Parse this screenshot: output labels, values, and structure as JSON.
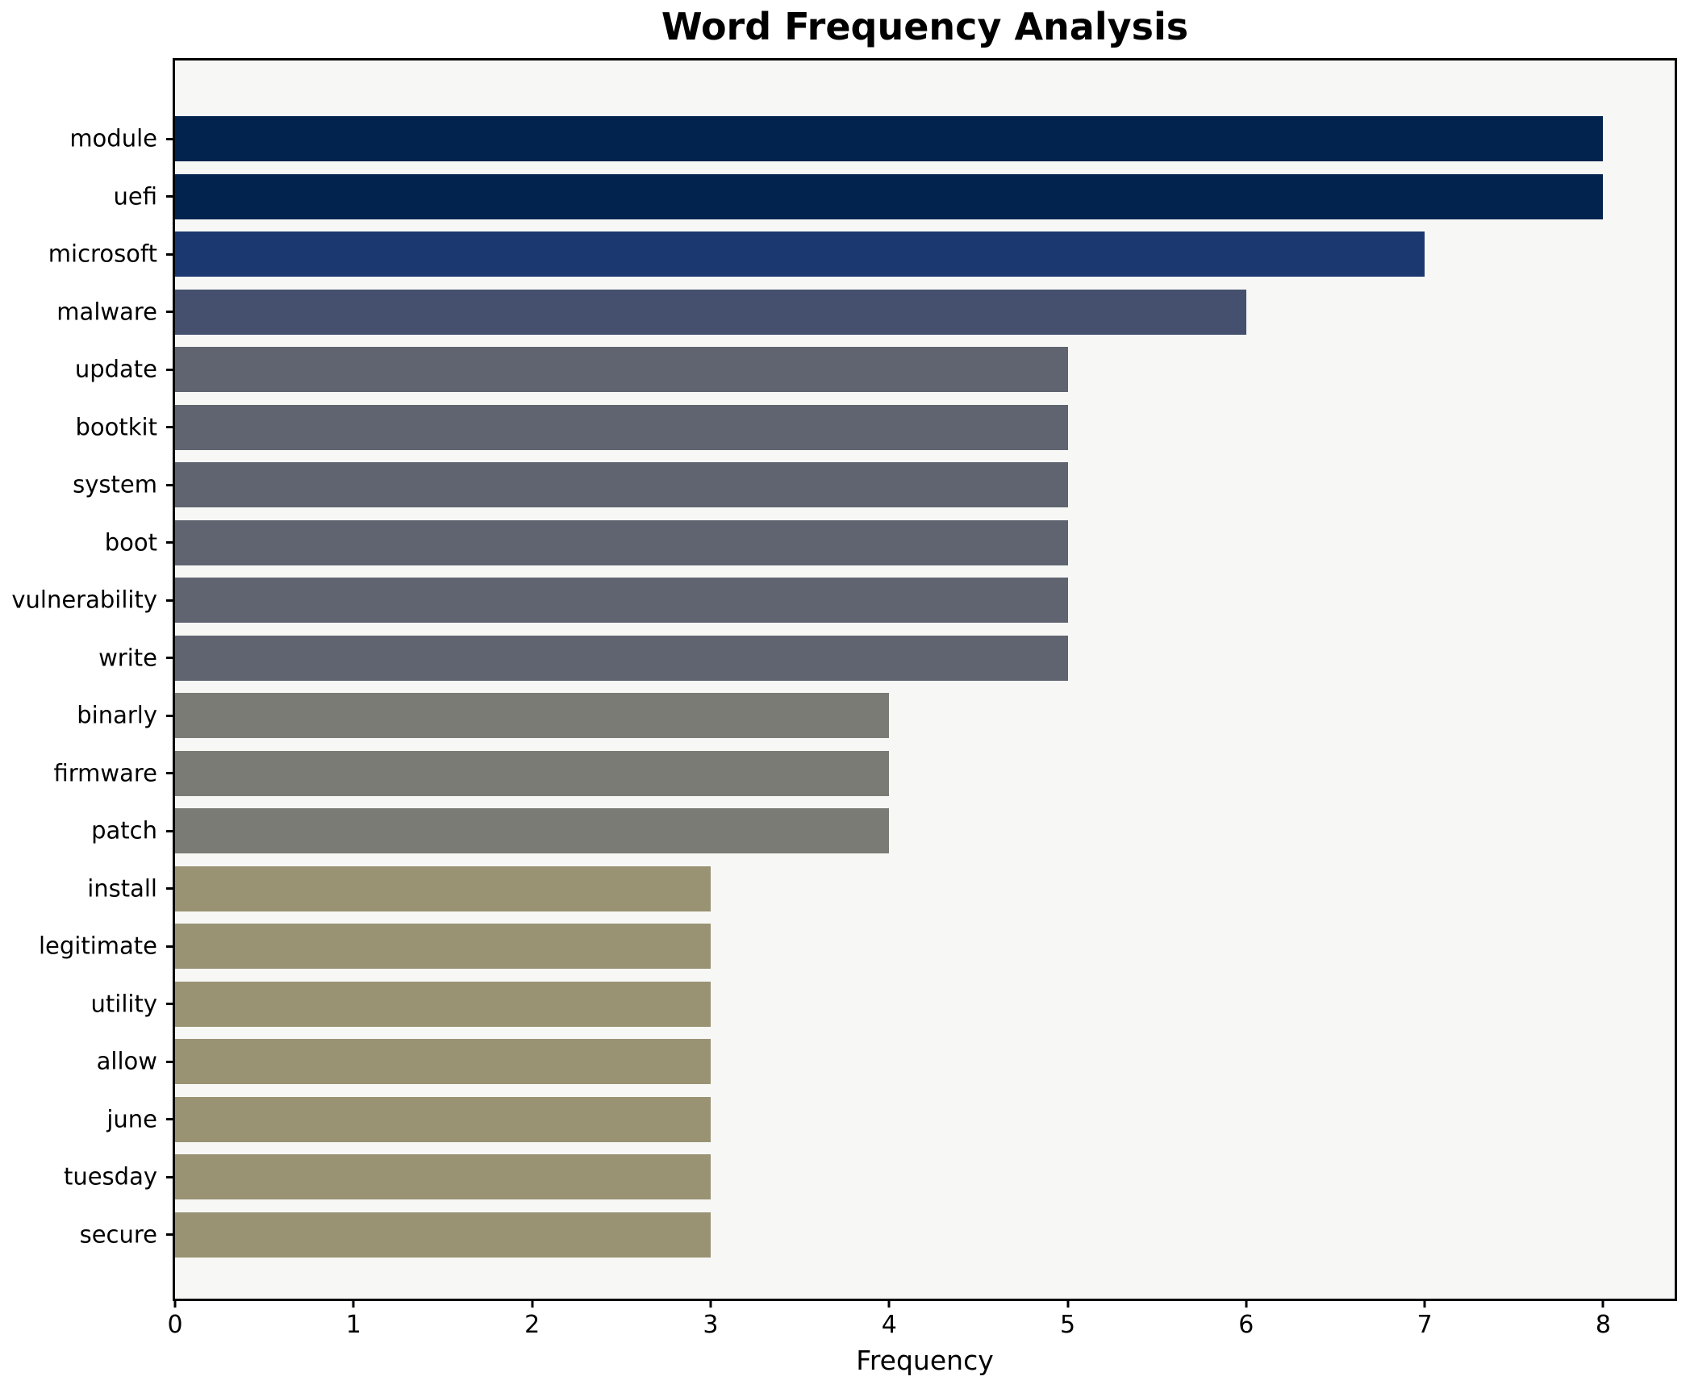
{
  "title": "Word Frequency Analysis",
  "x_axis": {
    "label": "Frequency"
  },
  "chart_data": {
    "type": "bar",
    "orientation": "horizontal",
    "title": "Word Frequency Analysis",
    "xlabel": "Frequency",
    "ylabel": "",
    "categories": [
      "module",
      "uefi",
      "microsoft",
      "malware",
      "update",
      "bootkit",
      "system",
      "boot",
      "vulnerability",
      "write",
      "binarly",
      "firmware",
      "patch",
      "install",
      "legitimate",
      "utility",
      "allow",
      "june",
      "tuesday",
      "secure"
    ],
    "values": [
      8,
      8,
      7,
      6,
      5,
      5,
      5,
      5,
      5,
      5,
      4,
      4,
      4,
      3,
      3,
      3,
      3,
      3,
      3,
      3
    ],
    "bar_colors": [
      "#02234e",
      "#02234e",
      "#1c3870",
      "#45506e",
      "#5f6470",
      "#5f6470",
      "#5f6470",
      "#5f6470",
      "#5f6470",
      "#5f6470",
      "#7b7b76",
      "#7b7b76",
      "#7b7b76",
      "#999373",
      "#999373",
      "#999373",
      "#999373",
      "#999373",
      "#999373",
      "#999373"
    ],
    "x_ticks": [
      0,
      1,
      2,
      3,
      4,
      5,
      6,
      7,
      8
    ],
    "xlim": [
      0,
      8.4
    ],
    "grid": false,
    "legend": false,
    "colors": {
      "plot_background": "#f7f7f6",
      "figure_background": "#ffffff",
      "spine": "#000000",
      "text": "#000000"
    }
  }
}
